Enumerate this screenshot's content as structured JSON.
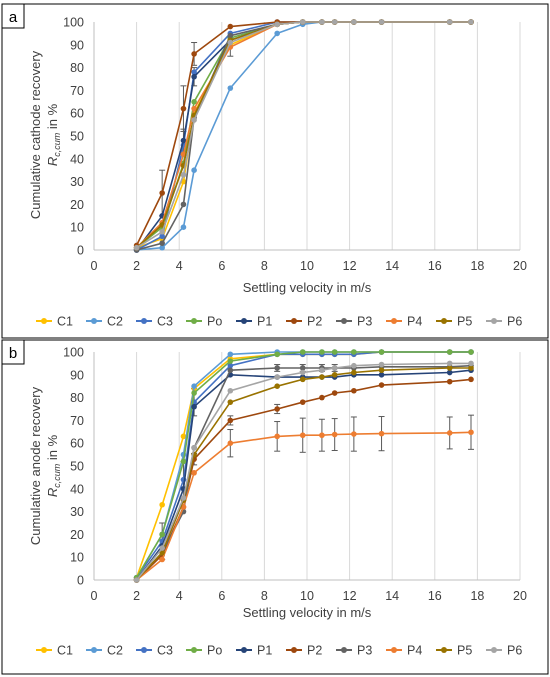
{
  "chart_data": [
    {
      "panel_label": "a",
      "type": "line",
      "ylabel_line1": "Cumulative cathode recovery",
      "ylabel_symbol": "R",
      "ylabel_sub": "c,cum",
      "ylabel_suffix": " in %",
      "xlabel": "Settling velocity in m/s",
      "xlim": [
        0,
        20
      ],
      "ylim": [
        0,
        100
      ],
      "xticks": [
        "0",
        "2",
        "4",
        "6",
        "8",
        "10",
        "12",
        "14",
        "16",
        "18",
        "20"
      ],
      "yticks": [
        "0",
        "10",
        "20",
        "30",
        "40",
        "50",
        "60",
        "70",
        "80",
        "90",
        "100"
      ],
      "grid": "vertical",
      "legend_position": "bottom",
      "x": [
        2.0,
        3.2,
        4.2,
        4.7,
        6.4,
        8.6,
        9.8,
        10.7,
        11.3,
        12.2,
        13.5,
        16.7,
        17.7
      ],
      "series": [
        {
          "name": "C1",
          "color": "#FFC000",
          "values": [
            1,
            5,
            30,
            60,
            90,
            99,
            100,
            100,
            100,
            100,
            100,
            100,
            100
          ]
        },
        {
          "name": "C2",
          "color": "#5B9BD5",
          "values": [
            0,
            1,
            10,
            35,
            71,
            95,
            99,
            100,
            100,
            100,
            100,
            100,
            100
          ]
        },
        {
          "name": "C3",
          "color": "#4472C4",
          "values": [
            0,
            6,
            46,
            78,
            95,
            100,
            100,
            100,
            100,
            100,
            100,
            100,
            100
          ]
        },
        {
          "name": "Po",
          "color": "#70AD47",
          "values": [
            1,
            10,
            38,
            65,
            93,
            99,
            100,
            100,
            100,
            100,
            100,
            100,
            100
          ]
        },
        {
          "name": "P1",
          "color": "#264478",
          "values": [
            0,
            15,
            48,
            76,
            92,
            99,
            100,
            100,
            100,
            100,
            100,
            100,
            100
          ]
        },
        {
          "name": "P2",
          "color": "#9E480E",
          "values": [
            2,
            25,
            62,
            86,
            98,
            100,
            100,
            100,
            100,
            100,
            100,
            100,
            100
          ]
        },
        {
          "name": "P3",
          "color": "#636363",
          "values": [
            0,
            3,
            20,
            58,
            94,
            99,
            100,
            100,
            100,
            100,
            100,
            100,
            100
          ]
        },
        {
          "name": "P4",
          "color": "#ED7D31",
          "values": [
            1,
            12,
            42,
            62,
            89,
            99,
            100,
            100,
            100,
            100,
            100,
            100,
            100
          ]
        },
        {
          "name": "P5",
          "color": "#997300",
          "values": [
            1,
            11,
            37,
            59,
            92,
            99,
            100,
            100,
            100,
            100,
            100,
            100,
            100
          ]
        },
        {
          "name": "P6",
          "color": "#A5A5A5",
          "values": [
            1,
            8,
            33,
            57,
            91,
            99,
            100,
            100,
            100,
            100,
            100,
            100,
            100
          ]
        }
      ]
    },
    {
      "panel_label": "b",
      "type": "line",
      "ylabel_line1": "Cumulative anode recovery",
      "ylabel_symbol": "R",
      "ylabel_sub": "c,cum",
      "ylabel_suffix": " in %",
      "xlabel": "Settling velocity in m/s",
      "xlim": [
        0,
        20
      ],
      "ylim": [
        0,
        100
      ],
      "xticks": [
        "0",
        "2",
        "4",
        "6",
        "8",
        "10",
        "12",
        "14",
        "16",
        "18",
        "20"
      ],
      "yticks": [
        "0",
        "10",
        "20",
        "30",
        "40",
        "50",
        "60",
        "70",
        "80",
        "90",
        "100"
      ],
      "grid": "vertical",
      "legend_position": "bottom",
      "x": [
        2.0,
        3.2,
        4.2,
        4.7,
        6.4,
        8.6,
        9.8,
        10.7,
        11.3,
        12.2,
        13.5,
        16.7,
        17.7
      ],
      "series": [
        {
          "name": "C1",
          "color": "#FFC000",
          "values": [
            1,
            33,
            63,
            84,
            97,
            99,
            99,
            99,
            99,
            99,
            100,
            100,
            100
          ]
        },
        {
          "name": "C2",
          "color": "#5B9BD5",
          "values": [
            1,
            20,
            55,
            85,
            99,
            100,
            100,
            100,
            100,
            100,
            100,
            100,
            100
          ]
        },
        {
          "name": "C3",
          "color": "#4472C4",
          "values": [
            1,
            17,
            44,
            78,
            94,
            99,
            99,
            99,
            99,
            99,
            100,
            100,
            100
          ]
        },
        {
          "name": "Po",
          "color": "#70AD47",
          "values": [
            1,
            20,
            52,
            82,
            96,
            99,
            100,
            100,
            100,
            100,
            100,
            100,
            100
          ]
        },
        {
          "name": "P1",
          "color": "#264478",
          "values": [
            0,
            15,
            40,
            76,
            90,
            89,
            89,
            89,
            89,
            90,
            90,
            91,
            92
          ]
        },
        {
          "name": "P2",
          "color": "#9E480E",
          "values": [
            0,
            11,
            32,
            53,
            70,
            75,
            78,
            80,
            82,
            83,
            85.5,
            87,
            88
          ]
        },
        {
          "name": "P3",
          "color": "#636363",
          "values": [
            0,
            12,
            30,
            58,
            92,
            93,
            93,
            93,
            93,
            93,
            93.5,
            93.5,
            94
          ]
        },
        {
          "name": "P4",
          "color": "#ED7D31",
          "values": [
            0,
            9,
            32,
            47,
            60,
            63,
            63.5,
            63.5,
            63.8,
            64,
            64.2,
            64.5,
            64.8
          ]
        },
        {
          "name": "P5",
          "color": "#997300",
          "values": [
            0,
            12,
            35,
            55,
            78,
            85,
            88,
            89,
            90,
            91,
            92,
            93,
            93
          ]
        },
        {
          "name": "P6",
          "color": "#A5A5A5",
          "values": [
            0,
            14,
            36,
            58,
            83,
            89,
            91,
            92,
            93,
            94,
            94.5,
            95,
            95
          ]
        }
      ],
      "error_bars": [
        {
          "series": "P4",
          "x_index": [
            4,
            5,
            6,
            7,
            8,
            9,
            10,
            11,
            12
          ],
          "err": [
            6,
            6.5,
            7.5,
            7,
            7,
            7.5,
            7.5,
            7,
            7.5
          ]
        },
        {
          "series": "P2",
          "x_index": [
            3,
            4,
            5
          ],
          "err": [
            2.5,
            2,
            2
          ]
        },
        {
          "series": "P3",
          "x_index": [
            5,
            6,
            7,
            8
          ],
          "err": [
            1.5,
            1.5,
            1.5,
            1.5
          ]
        },
        {
          "series": "C3",
          "x_index": [
            1,
            2,
            3
          ],
          "err": [
            8,
            8,
            6
          ]
        }
      ]
    }
  ],
  "top_error_bars": [
    {
      "series": "P2",
      "x_index": [
        1,
        2,
        3
      ],
      "err": [
        10,
        10,
        5
      ]
    },
    {
      "series": "P4",
      "x_index": [
        4
      ],
      "err": [
        4
      ]
    },
    {
      "series": "P1",
      "x_index": [
        2,
        3
      ],
      "err": [
        5,
        4
      ]
    }
  ]
}
